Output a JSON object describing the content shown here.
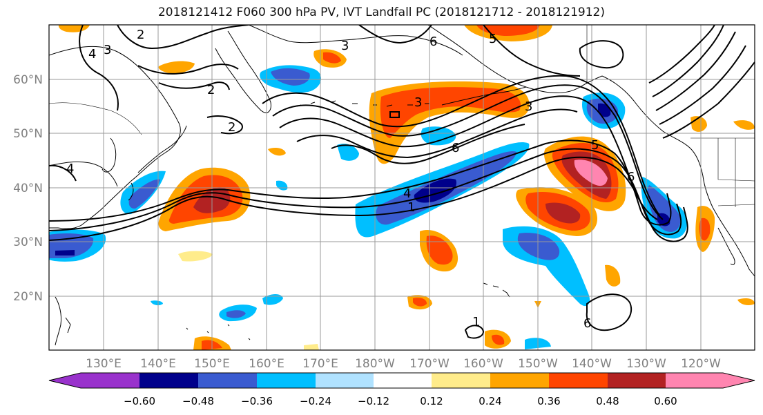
{
  "title": "2018121412 F060 300 hPa PV, IVT Landfall PC (2018121712 - 2018121912)",
  "lon_labels": [
    "130°E",
    "140°E",
    "150°E",
    "160°E",
    "170°E",
    "180°W",
    "170°W",
    "160°W",
    "150°W",
    "140°W",
    "130°W",
    "120°W"
  ],
  "lat_labels": [
    "20°N",
    "30°N",
    "40°N",
    "50°N",
    "60°N"
  ],
  "contour_labels": [
    "2",
    "3",
    "4",
    "2",
    "2",
    "4",
    "3",
    "3",
    "6",
    "5",
    "6",
    "4",
    "1",
    "5",
    "6",
    "1",
    "3",
    "6"
  ],
  "colorbar": {
    "colors": [
      "#9932cc",
      "#00008b",
      "#3a5bd0",
      "#00bfff",
      "#b0e2ff",
      "#ffffff",
      "#ffec8b",
      "#ffa500",
      "#ff4500",
      "#b22222",
      "#ff85b0"
    ],
    "tick_labels": [
      "−0.60",
      "−0.48",
      "−0.36",
      "−0.24",
      "−0.12",
      "0.12",
      "0.24",
      "0.36",
      "0.48",
      "0.60"
    ]
  },
  "colors": {
    "frame": "#000000",
    "grid": "#9a9a9a",
    "axis_text": "#808080",
    "coast": "#000000"
  }
}
